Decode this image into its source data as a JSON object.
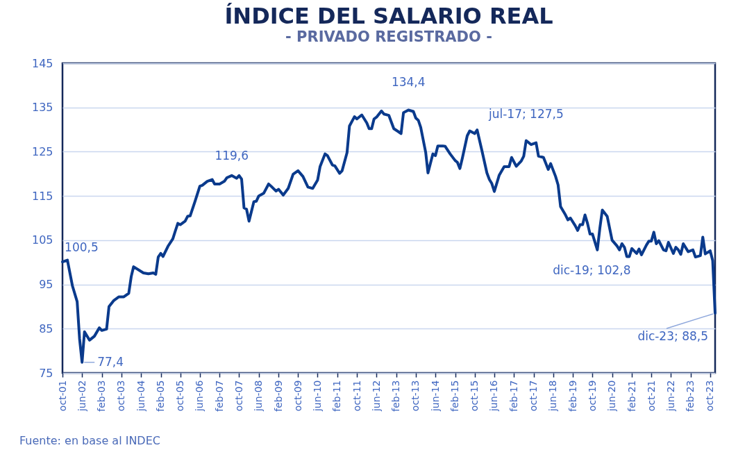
{
  "chart_data": {
    "type": "line",
    "title": "ÍNDICE DEL SALARIO REAL",
    "subtitle": "- PRIVADO REGISTRADO -",
    "x": [
      "2001-10",
      "2001-12",
      "2002-02",
      "2002-04",
      "2002-05",
      "2002-06",
      "2002-07",
      "2002-09",
      "2002-11",
      "2003-01",
      "2003-02",
      "2003-04",
      "2003-05",
      "2003-07",
      "2003-09",
      "2003-11",
      "2004-01",
      "2004-02",
      "2004-03",
      "2004-07",
      "2004-09",
      "2004-11",
      "2004-12",
      "2005-01",
      "2005-02",
      "2005-03",
      "2005-05",
      "2005-07",
      "2005-08",
      "2005-09",
      "2005-10",
      "2005-12",
      "2006-01",
      "2006-02",
      "2006-04",
      "2006-06",
      "2006-07",
      "2006-09",
      "2006-11",
      "2006-12",
      "2007-02",
      "2007-04",
      "2007-05",
      "2007-07",
      "2007-09",
      "2007-10",
      "2007-11",
      "2007-12",
      "2008-01",
      "2008-02",
      "2008-04",
      "2008-05",
      "2008-06",
      "2008-08",
      "2008-10",
      "2008-11",
      "2009-01",
      "2009-02",
      "2009-04",
      "2009-06",
      "2009-08",
      "2009-10",
      "2009-12",
      "2010-02",
      "2010-04",
      "2010-06",
      "2010-07",
      "2010-09",
      "2010-10",
      "2010-12",
      "2011-01",
      "2011-03",
      "2011-04",
      "2011-06",
      "2011-07",
      "2011-09",
      "2011-10",
      "2011-12",
      "2012-02",
      "2012-03",
      "2012-04",
      "2012-05",
      "2012-06",
      "2012-08",
      "2012-09",
      "2012-11",
      "2013-01",
      "2013-03",
      "2013-04",
      "2013-05",
      "2013-07",
      "2013-09",
      "2013-10",
      "2013-11",
      "2013-12",
      "2014-02",
      "2014-03",
      "2014-05",
      "2014-06",
      "2014-07",
      "2014-09",
      "2014-10",
      "2014-12",
      "2015-02",
      "2015-03",
      "2015-04",
      "2015-05",
      "2015-07",
      "2015-08",
      "2015-10",
      "2015-11",
      "2016-01",
      "2016-03",
      "2016-04",
      "2016-05",
      "2016-06",
      "2016-08",
      "2016-10",
      "2016-12",
      "2017-01",
      "2017-03",
      "2017-05",
      "2017-06",
      "2017-07",
      "2017-09",
      "2017-11",
      "2017-12",
      "2018-02",
      "2018-04",
      "2018-05",
      "2018-07",
      "2018-08",
      "2018-09",
      "2018-11",
      "2018-12",
      "2019-01",
      "2019-03",
      "2019-04",
      "2019-05",
      "2019-06",
      "2019-07",
      "2019-08",
      "2019-09",
      "2019-10",
      "2019-12",
      "2020-01",
      "2020-02",
      "2020-04",
      "2020-06",
      "2020-08",
      "2020-09",
      "2020-10",
      "2020-11",
      "2020-12",
      "2021-01",
      "2021-02",
      "2021-04",
      "2021-05",
      "2021-06",
      "2021-08",
      "2021-09",
      "2021-10",
      "2021-11",
      "2021-12",
      "2022-01",
      "2022-03",
      "2022-04",
      "2022-05",
      "2022-07",
      "2022-08",
      "2022-09",
      "2022-10",
      "2022-11",
      "2023-01",
      "2023-03",
      "2023-04",
      "2023-06",
      "2023-07",
      "2023-08",
      "2023-10",
      "2023-11",
      "2023-12"
    ],
    "series": [
      {
        "color": "#0a3a8c",
        "values": [
          100.1,
          100.5,
          94.7,
          91.1,
          82.7,
          77.4,
          84.3,
          82.4,
          83.3,
          85.2,
          84.6,
          84.9,
          90.0,
          91.4,
          92.2,
          92.2,
          93.0,
          96.8,
          99.0,
          97.6,
          97.4,
          97.6,
          97.3,
          101.2,
          102.0,
          101.3,
          103.6,
          105.3,
          107.1,
          108.8,
          108.5,
          109.3,
          110.4,
          110.5,
          113.7,
          117.2,
          117.4,
          118.3,
          118.7,
          117.7,
          117.7,
          118.3,
          119.1,
          119.6,
          119.0,
          119.6,
          118.8,
          112.3,
          112.0,
          109.3,
          113.7,
          113.8,
          115.0,
          115.6,
          117.7,
          117.2,
          116.1,
          116.5,
          115.2,
          116.7,
          119.9,
          120.7,
          119.4,
          117.0,
          116.7,
          118.6,
          121.6,
          124.5,
          124.1,
          122.0,
          121.8,
          120.1,
          120.7,
          124.8,
          130.8,
          132.9,
          132.4,
          133.3,
          131.5,
          130.2,
          130.2,
          132.4,
          132.8,
          134.2,
          133.5,
          133.2,
          130.2,
          129.5,
          129.1,
          133.8,
          134.4,
          134.1,
          132.6,
          132.1,
          130.5,
          124.8,
          120.2,
          124.5,
          124.1,
          126.3,
          126.3,
          126.2,
          124.5,
          123.0,
          122.6,
          121.2,
          123.5,
          128.6,
          129.7,
          129.1,
          129.9,
          125.1,
          120.2,
          118.7,
          117.8,
          116.0,
          119.7,
          121.6,
          121.6,
          123.7,
          121.7,
          122.9,
          124.0,
          127.5,
          126.6,
          127.0,
          124.0,
          123.7,
          121.0,
          122.3,
          119.4,
          117.5,
          112.6,
          110.7,
          109.6,
          110.0,
          108.3,
          107.2,
          108.5,
          108.5,
          110.7,
          108.8,
          106.4,
          106.4,
          102.8,
          107.7,
          111.8,
          110.4,
          105.0,
          103.7,
          102.8,
          104.2,
          103.4,
          101.3,
          101.3,
          103.1,
          102.0,
          103.0,
          101.7,
          103.9,
          104.8,
          104.8,
          106.8,
          104.2,
          104.9,
          102.8,
          102.6,
          104.5,
          102.0,
          103.4,
          102.8,
          101.8,
          104.2,
          102.4,
          102.8,
          101.2,
          101.5,
          105.7,
          101.9,
          102.6,
          100.4,
          88.5
        ]
      }
    ],
    "xlim": [
      "2001-10",
      "2023-12"
    ],
    "xticks": [
      {
        "value": "2001-10",
        "label": "oct-01"
      },
      {
        "value": "2002-06",
        "label": "jun-02"
      },
      {
        "value": "2003-02",
        "label": "feb-03"
      },
      {
        "value": "2003-10",
        "label": "oct-03"
      },
      {
        "value": "2004-06",
        "label": "jun-04"
      },
      {
        "value": "2005-02",
        "label": "feb-05"
      },
      {
        "value": "2005-10",
        "label": "oct-05"
      },
      {
        "value": "2006-06",
        "label": "jun-06"
      },
      {
        "value": "2007-02",
        "label": "feb-07"
      },
      {
        "value": "2007-10",
        "label": "oct-07"
      },
      {
        "value": "2008-06",
        "label": "jun-08"
      },
      {
        "value": "2009-02",
        "label": "feb-09"
      },
      {
        "value": "2009-10",
        "label": "oct-09"
      },
      {
        "value": "2010-06",
        "label": "jun-10"
      },
      {
        "value": "2011-02",
        "label": "feb-11"
      },
      {
        "value": "2011-10",
        "label": "oct-11"
      },
      {
        "value": "2012-06",
        "label": "jun-12"
      },
      {
        "value": "2013-02",
        "label": "feb-13"
      },
      {
        "value": "2013-10",
        "label": "oct-13"
      },
      {
        "value": "2014-06",
        "label": "jun-14"
      },
      {
        "value": "2015-02",
        "label": "feb-15"
      },
      {
        "value": "2015-10",
        "label": "oct-15"
      },
      {
        "value": "2016-06",
        "label": "jun-16"
      },
      {
        "value": "2017-02",
        "label": "feb-17"
      },
      {
        "value": "2017-10",
        "label": "oct-17"
      },
      {
        "value": "2018-06",
        "label": "jun-18"
      },
      {
        "value": "2019-02",
        "label": "feb-19"
      },
      {
        "value": "2019-10",
        "label": "oct-19"
      },
      {
        "value": "2020-06",
        "label": "jun-20"
      },
      {
        "value": "2021-02",
        "label": "feb-21"
      },
      {
        "value": "2021-10",
        "label": "oct-21"
      },
      {
        "value": "2022-06",
        "label": "jun-22"
      },
      {
        "value": "2023-02",
        "label": "feb-23"
      },
      {
        "value": "2023-10",
        "label": "oct-23"
      }
    ],
    "ylim": [
      75,
      145
    ],
    "yticks": [
      75,
      85,
      95,
      105,
      115,
      125,
      135,
      145
    ],
    "grid": "y",
    "annotations": [
      {
        "text": "100,5",
        "x": "2001-12",
        "y": 100.5
      },
      {
        "text": "77,4",
        "x": "2002-06",
        "y": 77.4
      },
      {
        "text": "119,6",
        "x": "2007-07",
        "y": 119.6
      },
      {
        "text": "134,4",
        "x": "2013-07",
        "y": 134.4
      },
      {
        "text": "jul-17;  127,5",
        "x": "2017-07",
        "y": 127.5
      },
      {
        "text": "dic-19;  102,8",
        "x": "2019-12",
        "y": 102.8
      },
      {
        "text": "dic-23;  88,5",
        "x": "2023-12",
        "y": 88.5
      },
      "Fuente: en base al INDEC"
    ]
  }
}
